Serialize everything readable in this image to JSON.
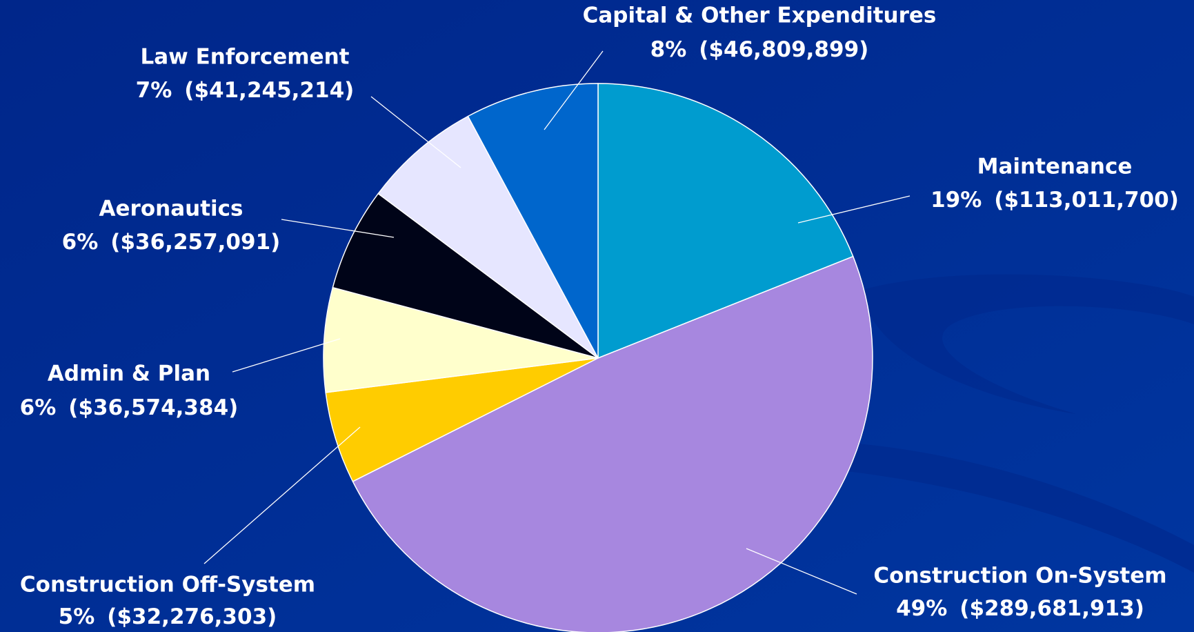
{
  "chart_data": {
    "type": "pie",
    "categories": [
      "Maintenance",
      "Construction On-System",
      "Construction Off-System",
      "Admin & Plan",
      "Aeronautics",
      "Law Enforcement",
      "Capital & Other Expenditures"
    ],
    "values": [
      113011700,
      289681913,
      32276303,
      36574384,
      36257091,
      41245214,
      46809899
    ],
    "value_labels": [
      "($113,011,700)",
      "($289,681,913)",
      "($32,276,303)",
      "($36,574,384)",
      "($36,257,091)",
      "($41,245,214)",
      "($46,809,899)"
    ],
    "percent_labels": [
      "19%",
      "49%",
      "5%",
      "6%",
      "6%",
      "7%",
      "8%"
    ],
    "colors": [
      "#009ccf",
      "#a787df",
      "#ffcc00",
      "#ffffcc",
      "#000418",
      "#e6e6ff",
      "#0066cc"
    ],
    "start_angle": 0,
    "direction": "clockwise"
  }
}
